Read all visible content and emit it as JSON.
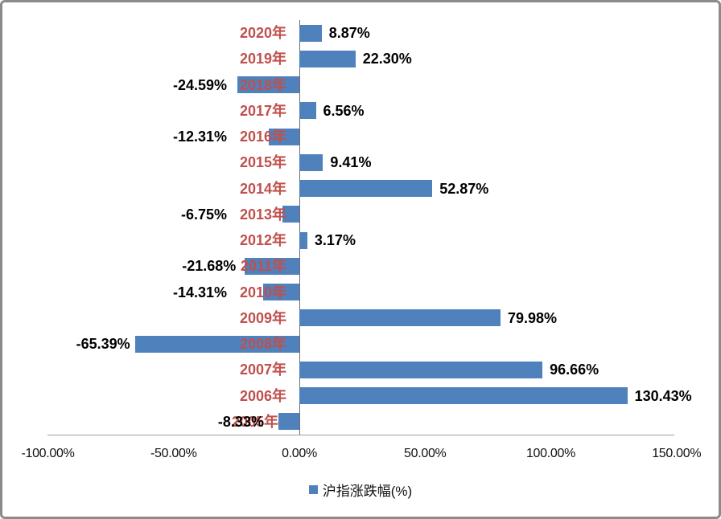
{
  "chart_data": {
    "type": "bar",
    "orientation": "horizontal",
    "title": "",
    "series_name": "沪指涨跌幅(%)",
    "legend_position": "bottom",
    "gridlines": "none",
    "categories": [
      "2020年",
      "2019年",
      "2018年",
      "2017年",
      "2016年",
      "2015年",
      "2014年",
      "2013年",
      "2012年",
      "2011年",
      "2010年",
      "2009年",
      "2008年",
      "2007年",
      "2006年",
      "2005年"
    ],
    "values": [
      8.87,
      22.3,
      -24.59,
      6.56,
      -12.31,
      9.41,
      52.87,
      -6.75,
      3.17,
      -21.68,
      -14.31,
      79.98,
      -65.39,
      96.66,
      130.43,
      -8.33
    ],
    "value_labels": [
      "8.87%",
      "22.30%",
      "-24.59%",
      "6.56%",
      "-12.31%",
      "9.41%",
      "52.87%",
      "-6.75%",
      "3.17%",
      "-21.68%",
      "-14.31%",
      "79.98%",
      "-65.39%",
      "96.66%",
      "130.43%",
      "-8.33%"
    ],
    "x_tick_labels": [
      "-100.00%",
      "-50.00%",
      "0.00%",
      "50.00%",
      "100.00%",
      "150.00%"
    ],
    "x_tick_values": [
      -100,
      -50,
      0,
      50,
      100,
      150
    ],
    "xlim": [
      -100,
      150
    ],
    "bar_color": "#4F81BD",
    "category_label_color": "#C0504D",
    "value_label_color": "#000000",
    "axis_line_color": "#6E6E6E"
  }
}
